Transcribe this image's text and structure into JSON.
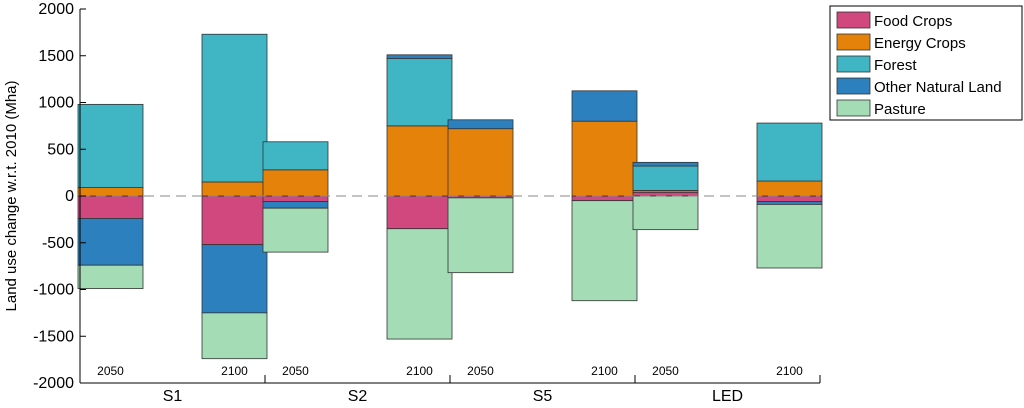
{
  "chart_data": {
    "type": "bar",
    "stacked": true,
    "ylabel": "Land use change w.r.t. 2010 (Mha)",
    "ylim": [
      -2000,
      2000
    ],
    "yticks": [
      -2000,
      -1500,
      -1000,
      -500,
      0,
      500,
      1000,
      1500,
      2000
    ],
    "grid": false,
    "zero_line": "dashed",
    "legend_position": "top-right",
    "groups": [
      "S1",
      "S2",
      "S5",
      "LED"
    ],
    "years": [
      "2050",
      "2100"
    ],
    "series": [
      {
        "name": "Food Crops",
        "color": "#d0487e"
      },
      {
        "name": "Energy Crops",
        "color": "#e5820a"
      },
      {
        "name": "Forest",
        "color": "#40b5c4"
      },
      {
        "name": "Other Natural Land",
        "color": "#2c80bd"
      },
      {
        "name": "Pasture",
        "color": "#a4dcb5"
      }
    ],
    "bars": [
      {
        "group": "S1",
        "year": "2050",
        "values": {
          "Food Crops": -240,
          "Energy Crops": 90,
          "Forest": 890,
          "Other Natural Land": -500,
          "Pasture": -250
        }
      },
      {
        "group": "S1",
        "year": "2100",
        "values": {
          "Food Crops": -520,
          "Energy Crops": 150,
          "Forest": 1580,
          "Other Natural Land": -730,
          "Pasture": -490
        }
      },
      {
        "group": "S2",
        "year": "2050",
        "values": {
          "Food Crops": -60,
          "Energy Crops": 280,
          "Forest": 300,
          "Other Natural Land": -70,
          "Pasture": -470
        }
      },
      {
        "group": "S2",
        "year": "2100",
        "values": {
          "Food Crops": -350,
          "Energy Crops": 750,
          "Forest": 720,
          "Other Natural Land": 40,
          "Pasture": -1180
        }
      },
      {
        "group": "S5",
        "year": "2050",
        "values": {
          "Food Crops": -20,
          "Energy Crops": 720,
          "Forest": 0,
          "Other Natural Land": 95,
          "Pasture": -800
        }
      },
      {
        "group": "S5",
        "year": "2100",
        "values": {
          "Food Crops": -50,
          "Energy Crops": 800,
          "Forest": 0,
          "Other Natural Land": 325,
          "Pasture": -1070
        }
      },
      {
        "group": "LED",
        "year": "2050",
        "values": {
          "Food Crops": 40,
          "Energy Crops": 20,
          "Forest": 260,
          "Other Natural Land": 40,
          "Pasture": -360
        }
      },
      {
        "group": "LED",
        "year": "2100",
        "values": {
          "Food Crops": -60,
          "Energy Crops": 160,
          "Forest": 620,
          "Other Natural Land": -30,
          "Pasture": -680
        }
      }
    ]
  }
}
